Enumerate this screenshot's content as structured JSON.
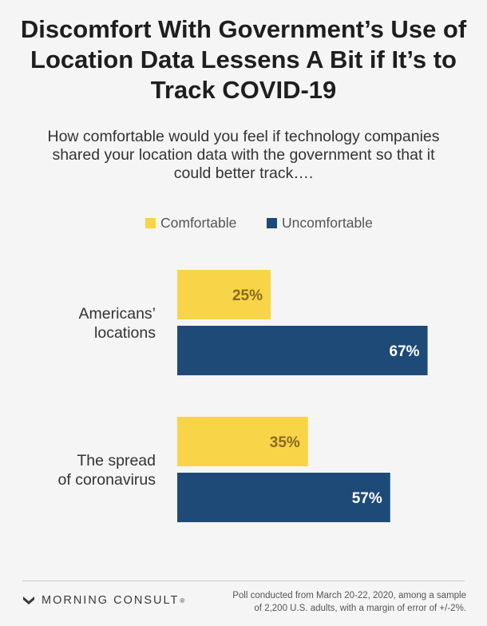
{
  "header": {
    "title": "Discomfort With Government’s Use of Location Data Lessens A Bit if It’s to Track COVID-19",
    "subtitle": "How comfortable would you feel if technology companies shared your location data with the government so that it could better track…."
  },
  "colors": {
    "comfortable": "#f8d448",
    "uncomfortable": "#1e4a78",
    "comfortable_label": "#8a6a1e",
    "uncomfortable_label": "#ffffff",
    "category_label": "#333333"
  },
  "chart_data": {
    "type": "bar",
    "orientation": "horizontal",
    "title": "Discomfort With Government’s Use of Location Data Lessens A Bit if It’s to Track COVID-19",
    "subtitle": "How comfortable would you feel if technology companies shared your location data with the government so that it could better track….",
    "categories": [
      [
        "Americans’",
        "locations"
      ],
      [
        "The spread",
        "of coronavirus"
      ]
    ],
    "series": [
      {
        "name": "Comfortable",
        "values": [
          25,
          35
        ],
        "labels": [
          "25%",
          "35%"
        ]
      },
      {
        "name": "Uncomfortable",
        "values": [
          67,
          57
        ],
        "labels": [
          "67%",
          "57%"
        ]
      }
    ],
    "xlim": [
      0,
      100
    ],
    "xlabel": "",
    "ylabel": "",
    "grid": false,
    "legend": "top"
  },
  "footer": {
    "brand": "MORNING CONSULT",
    "trademark": "®",
    "source_line1": "Poll conducted from March 20-22, 2020, among a sample",
    "source_line2": "of 2,200 U.S. adults, with a margin of error of +/-2%."
  }
}
